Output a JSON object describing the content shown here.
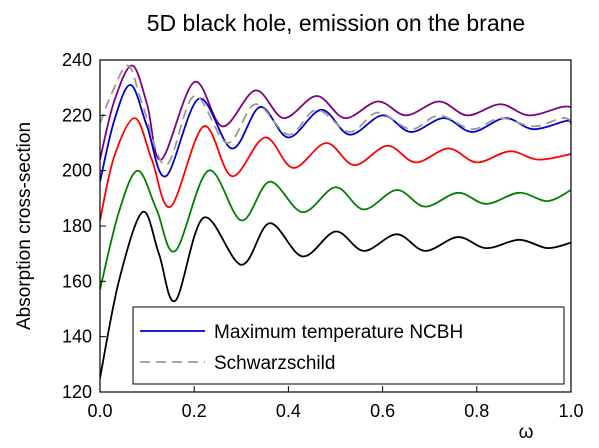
{
  "chart_data": {
    "type": "line",
    "title": "5D black hole, emission on the brane",
    "xlabel": "ω",
    "ylabel": "Absorption cross-section",
    "xlim": [
      0.0,
      1.0
    ],
    "ylim": [
      120,
      240
    ],
    "x_ticks": [
      "0.0",
      "0.2",
      "0.4",
      "0.6",
      "0.8",
      "1.0"
    ],
    "y_ticks": [
      "120",
      "140",
      "160",
      "180",
      "200",
      "220",
      "240"
    ],
    "grid": false,
    "legend_placement": "bottom-right",
    "series": [
      {
        "name": "",
        "color": "#800080",
        "dash": "solid",
        "legend": false,
        "x": [
          0.0,
          0.03,
          0.068,
          0.1,
          0.13,
          0.2,
          0.26,
          0.33,
          0.39,
          0.46,
          0.52,
          0.59,
          0.65,
          0.72,
          0.78,
          0.85,
          0.91,
          0.98,
          1.0
        ],
        "y": [
          204,
          225,
          238,
          224,
          204,
          232,
          216,
          229,
          219,
          227,
          219,
          225,
          220,
          225,
          220,
          224,
          220,
          223,
          223
        ]
      },
      {
        "name": "Maximum temperature NCBH",
        "color": "#0000d0",
        "dash": "solid",
        "legend": true,
        "x": [
          0.0,
          0.03,
          0.065,
          0.1,
          0.14,
          0.21,
          0.28,
          0.34,
          0.4,
          0.47,
          0.53,
          0.6,
          0.66,
          0.73,
          0.79,
          0.86,
          0.92,
          0.99,
          1.0
        ],
        "y": [
          196,
          218,
          231,
          216,
          198,
          226,
          208,
          223,
          212,
          222,
          213,
          220,
          214,
          219,
          214,
          219,
          215,
          218,
          217
        ]
      },
      {
        "name": "Schwarzschild",
        "color": "#999999",
        "dash": "dashed",
        "legend": true,
        "x": [
          0.0,
          0.025,
          0.06,
          0.09,
          0.14,
          0.2,
          0.27,
          0.33,
          0.4,
          0.46,
          0.53,
          0.59,
          0.66,
          0.72,
          0.79,
          0.85,
          0.92,
          0.98,
          1.0
        ],
        "y": [
          217,
          228,
          238,
          224,
          202,
          227,
          210,
          224,
          213,
          222,
          214,
          221,
          215,
          220,
          215,
          219,
          216,
          219,
          218
        ]
      },
      {
        "name": "",
        "color": "#ff0000",
        "dash": "solid",
        "legend": false,
        "x": [
          0.0,
          0.03,
          0.074,
          0.11,
          0.15,
          0.22,
          0.28,
          0.35,
          0.41,
          0.48,
          0.54,
          0.61,
          0.67,
          0.74,
          0.8,
          0.87,
          0.93,
          1.0
        ],
        "y": [
          182,
          205,
          219,
          204,
          187,
          216,
          198,
          212,
          201,
          210,
          202,
          209,
          203,
          208,
          203,
          207,
          204,
          206
        ]
      },
      {
        "name": "",
        "color": "#008000",
        "dash": "solid",
        "legend": false,
        "x": [
          0.0,
          0.04,
          0.08,
          0.12,
          0.16,
          0.23,
          0.3,
          0.36,
          0.43,
          0.5,
          0.56,
          0.63,
          0.69,
          0.76,
          0.82,
          0.89,
          0.95,
          1.0
        ],
        "y": [
          157,
          185,
          200,
          186,
          171,
          200,
          182,
          196,
          185,
          194,
          186,
          193,
          187,
          192,
          188,
          192,
          189,
          193
        ]
      },
      {
        "name": "",
        "color": "#000000",
        "dash": "solid",
        "legend": false,
        "x": [
          0.0,
          0.04,
          0.09,
          0.125,
          0.16,
          0.22,
          0.3,
          0.36,
          0.43,
          0.5,
          0.56,
          0.63,
          0.69,
          0.76,
          0.82,
          0.89,
          0.95,
          1.0
        ],
        "y": [
          125,
          160,
          185,
          170,
          153,
          183,
          166,
          181,
          169,
          178,
          171,
          177,
          171,
          176,
          172,
          175,
          172,
          174
        ]
      }
    ]
  }
}
